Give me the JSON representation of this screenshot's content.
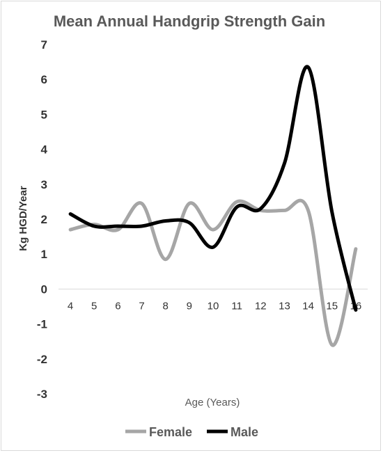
{
  "chart_data": {
    "type": "line",
    "title": "Mean Annual Handgrip Strength Gain",
    "xlabel": "Age (Years)",
    "ylabel": "Kg HGD/Year",
    "categories": [
      "4",
      "5",
      "6",
      "7",
      "8",
      "9",
      "10",
      "11",
      "12",
      "13",
      "14",
      "15",
      "16"
    ],
    "ylim": [
      -3,
      7
    ],
    "yticks": [
      "-3",
      "-2",
      "-1",
      "0",
      "1",
      "2",
      "3",
      "4",
      "5",
      "6",
      "7"
    ],
    "grid": false,
    "smooth": true,
    "legend_position": "bottom",
    "series": [
      {
        "name": "Female",
        "color": "#a6a6a6",
        "values": [
          1.7,
          1.85,
          1.7,
          2.45,
          0.85,
          2.45,
          1.7,
          2.5,
          2.25,
          2.25,
          2.25,
          -1.6,
          1.15
        ]
      },
      {
        "name": "Male",
        "color": "#000000",
        "values": [
          2.15,
          1.8,
          1.8,
          1.8,
          1.95,
          1.9,
          1.2,
          2.35,
          2.3,
          3.6,
          6.35,
          2.2,
          -0.6
        ]
      }
    ]
  }
}
